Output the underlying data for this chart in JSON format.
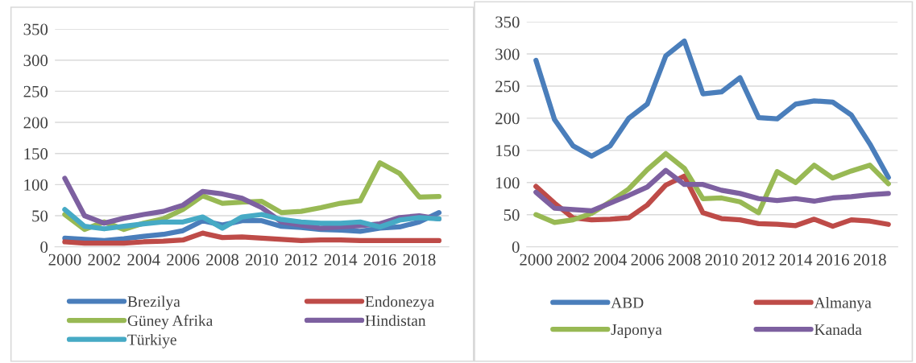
{
  "chart_data": [
    {
      "type": "line",
      "x": [
        2000,
        2001,
        2002,
        2003,
        2004,
        2005,
        2006,
        2007,
        2008,
        2009,
        2010,
        2011,
        2012,
        2013,
        2014,
        2015,
        2016,
        2017,
        2018,
        2019
      ],
      "xlim": [
        1999.5,
        2019.5
      ],
      "xticks": [
        2000,
        2002,
        2004,
        2006,
        2008,
        2010,
        2012,
        2014,
        2016,
        2018
      ],
      "ylim": [
        0,
        350
      ],
      "yticks": [
        0,
        50,
        100,
        150,
        200,
        250,
        300,
        350
      ],
      "grid": "y",
      "legend": "bottom",
      "series": [
        {
          "name": "Brezilya",
          "color": "#4a7ebb",
          "values": [
            14,
            12,
            10,
            13,
            17,
            20,
            26,
            42,
            35,
            42,
            42,
            33,
            31,
            28,
            27,
            25,
            30,
            32,
            40,
            55
          ]
        },
        {
          "name": "Endonezya",
          "color": "#be4b48",
          "values": [
            8,
            6,
            6,
            6,
            8,
            9,
            11,
            22,
            15,
            16,
            14,
            12,
            10,
            11,
            11,
            10,
            10,
            10,
            10,
            10
          ]
        },
        {
          "name": "Güney Afrika",
          "color": "#98b954",
          "values": [
            52,
            28,
            40,
            28,
            38,
            45,
            60,
            82,
            70,
            72,
            73,
            55,
            57,
            63,
            70,
            74,
            135,
            118,
            80,
            81
          ]
        },
        {
          "name": "Hindistan",
          "color": "#7d60a0",
          "values": [
            110,
            50,
            38,
            46,
            52,
            57,
            67,
            89,
            85,
            78,
            63,
            40,
            35,
            30,
            32,
            34,
            37,
            47,
            50,
            45
          ]
        },
        {
          "name": "Türkiye",
          "color": "#46aac5",
          "values": [
            60,
            33,
            29,
            33,
            37,
            40,
            40,
            48,
            30,
            48,
            52,
            44,
            40,
            38,
            38,
            40,
            32,
            43,
            47,
            45
          ]
        }
      ]
    },
    {
      "type": "line",
      "x": [
        2000,
        2001,
        2002,
        2003,
        2004,
        2005,
        2006,
        2007,
        2008,
        2009,
        2010,
        2011,
        2012,
        2013,
        2014,
        2015,
        2016,
        2017,
        2018,
        2019
      ],
      "xlim": [
        1999.5,
        2019.5
      ],
      "xticks": [
        2000,
        2002,
        2004,
        2006,
        2008,
        2010,
        2012,
        2014,
        2016,
        2018
      ],
      "ylim": [
        0,
        350
      ],
      "yticks": [
        0,
        50,
        100,
        150,
        200,
        250,
        300,
        350
      ],
      "grid": "y",
      "legend": "bottom",
      "series": [
        {
          "name": "ABD",
          "color": "#4a7ebb",
          "values": [
            290,
            198,
            157,
            141,
            157,
            200,
            222,
            297,
            320,
            238,
            241,
            263,
            201,
            199,
            222,
            227,
            225,
            205,
            160,
            108
          ]
        },
        {
          "name": "Almanya",
          "color": "#be4b48",
          "values": [
            94,
            68,
            45,
            42,
            43,
            45,
            65,
            96,
            110,
            53,
            44,
            42,
            36,
            35,
            33,
            43,
            32,
            42,
            40,
            35
          ]
        },
        {
          "name": "Japonya",
          "color": "#98b954",
          "values": [
            50,
            38,
            42,
            52,
            70,
            90,
            120,
            145,
            122,
            75,
            76,
            70,
            53,
            117,
            100,
            127,
            107,
            118,
            127,
            98
          ]
        },
        {
          "name": "Kanada",
          "color": "#7d60a0",
          "values": [
            85,
            60,
            58,
            56,
            68,
            80,
            93,
            119,
            97,
            97,
            88,
            83,
            75,
            72,
            75,
            71,
            76,
            78,
            81,
            83
          ]
        }
      ]
    }
  ]
}
